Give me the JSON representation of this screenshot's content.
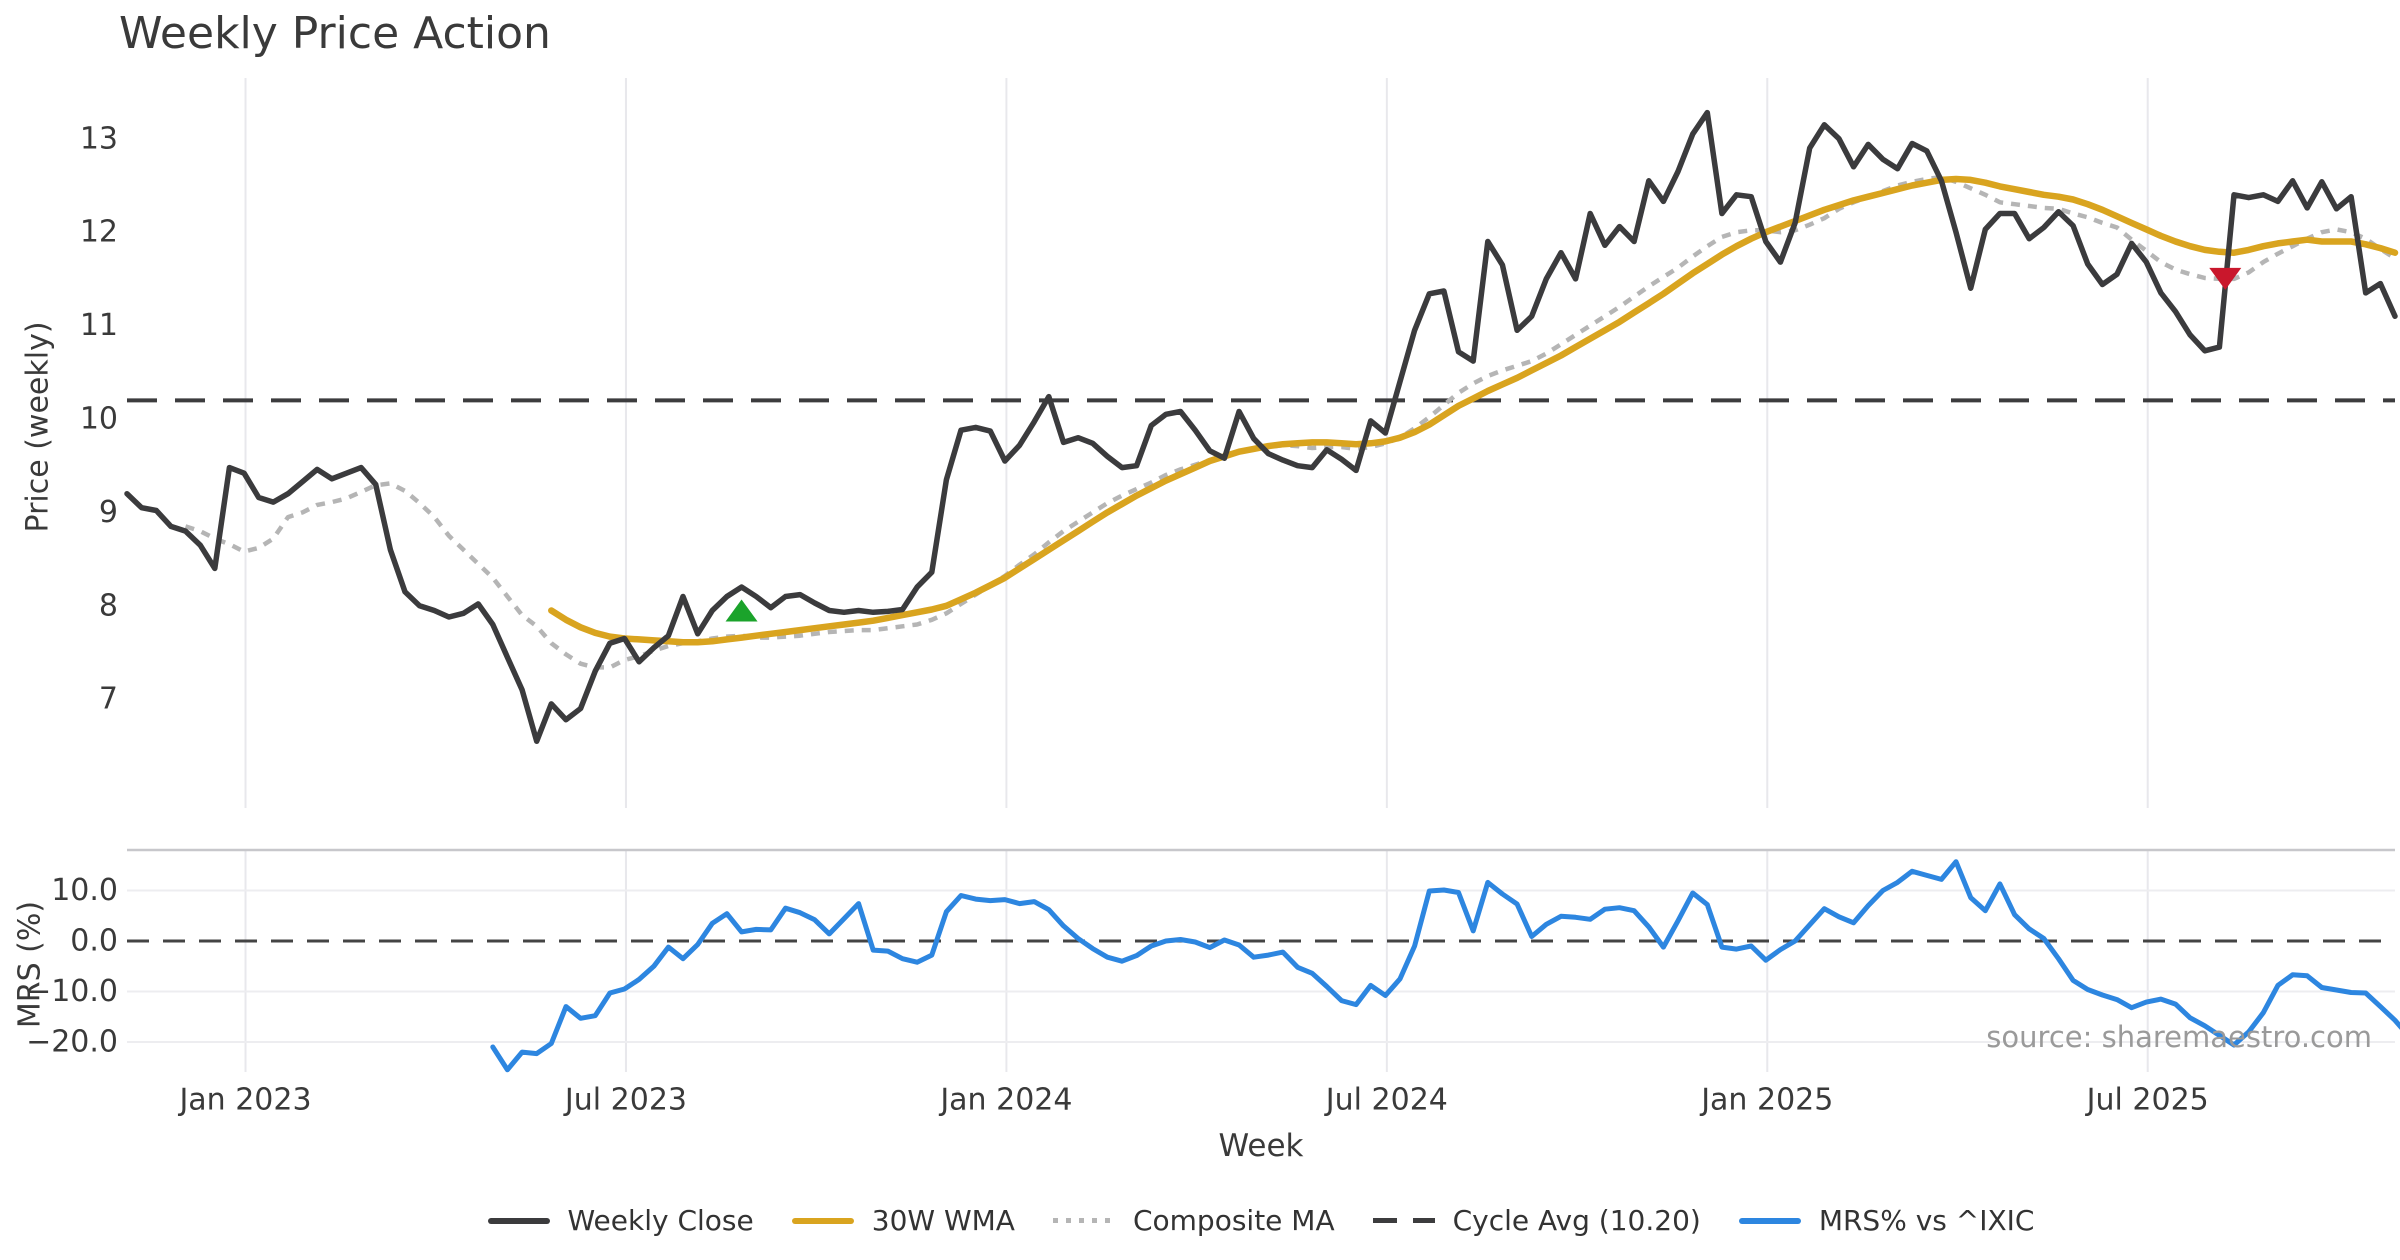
{
  "title": "Weekly Price Action",
  "watermark": "source: sharemaestro.com",
  "axes": {
    "price_label": "Price (weekly)",
    "mrs_label": "MRS (%)",
    "x_label": "Week"
  },
  "colors": {
    "close": "#3b3b3d",
    "wma": "#d9a41f",
    "composite": "#b5b5b5",
    "cycle_avg": "#3c3c3e",
    "mrs": "#2d86e0",
    "zero_line": "#444444",
    "grid": "#e8e8ec",
    "grid_h": "#ededf0",
    "spine": "#c7c7cb",
    "tick_text": "#3a3a3a",
    "buy_marker": "#1ba32b",
    "sell_marker": "#c9172c"
  },
  "legend": [
    {
      "label": "Weekly Close",
      "style": "solid",
      "color": "#3b3b3d"
    },
    {
      "label": "30W WMA",
      "style": "solid",
      "color": "#d9a41f"
    },
    {
      "label": "Composite MA",
      "style": "dotted",
      "color": "#b5b5b5"
    },
    {
      "label": "Cycle Avg (10.20)",
      "style": "dashed",
      "color": "#3c3c3e"
    },
    {
      "label": "MRS% vs ^IXIC",
      "style": "solid",
      "color": "#2d86e0"
    }
  ],
  "chart_data": {
    "type": "line",
    "title": "Weekly Price Action",
    "xlabel": "Week",
    "x_unit": "weeks (weekly data, ~Nov 2022 to ~Nov 2025)",
    "x_tick_labels": [
      "Jan 2023",
      "Jul 2023",
      "Jan 2024",
      "Jul 2024",
      "Jan 2025",
      "Jul 2025"
    ],
    "x_tick_weeks": [
      8.1,
      34.1,
      60.1,
      86.1,
      112.1,
      138.1
    ],
    "panels": [
      {
        "name": "price",
        "ylabel": "Price (weekly)",
        "ylim": [
          6.3,
          13.6
        ],
        "yticks": [
          {
            "v": 7,
            "label": "7"
          },
          {
            "v": 8,
            "label": "8"
          },
          {
            "v": 9,
            "label": "9"
          },
          {
            "v": 10,
            "label": "10"
          },
          {
            "v": 11,
            "label": "11"
          },
          {
            "v": 12,
            "label": "12"
          },
          {
            "v": 13,
            "label": "13"
          }
        ],
        "reference_line": {
          "name": "Cycle Avg",
          "value": 10.2,
          "style": "dashed"
        }
      },
      {
        "name": "mrs",
        "ylabel": "MRS (%)",
        "ylim": [
          -27,
          17
        ],
        "yticks": [
          {
            "v": 10,
            "label": "10.0"
          },
          {
            "v": 0,
            "label": "0.0"
          },
          {
            "v": -10,
            "label": "−10.0"
          },
          {
            "v": -20,
            "label": "−20.0"
          }
        ],
        "reference_line": {
          "name": "Zero",
          "value": 0,
          "style": "dashed"
        }
      }
    ],
    "series": [
      {
        "name": "Weekly Close",
        "panel": "price",
        "start_week": 0,
        "values": [
          9.2,
          9.05,
          9.02,
          8.85,
          8.8,
          8.65,
          8.4,
          9.48,
          9.42,
          9.16,
          9.11,
          9.2,
          9.33,
          9.46,
          9.36,
          9.42,
          9.48,
          9.3,
          8.6,
          8.15,
          8.0,
          7.95,
          7.88,
          7.92,
          8.02,
          7.8,
          7.45,
          7.1,
          6.55,
          6.95,
          6.78,
          6.9,
          7.3,
          7.6,
          7.65,
          7.4,
          7.55,
          7.68,
          8.1,
          7.7,
          7.95,
          8.1,
          8.2,
          8.1,
          7.98,
          8.1,
          8.12,
          8.03,
          7.95,
          7.93,
          7.95,
          7.93,
          7.94,
          7.96,
          8.2,
          8.36,
          9.35,
          9.88,
          9.91,
          9.87,
          9.55,
          9.72,
          9.97,
          10.24,
          9.75,
          9.8,
          9.74,
          9.6,
          9.48,
          9.5,
          9.93,
          10.05,
          10.08,
          9.88,
          9.66,
          9.58,
          10.08,
          9.79,
          9.63,
          9.56,
          9.5,
          9.48,
          9.67,
          9.57,
          9.45,
          9.98,
          9.85,
          10.4,
          10.95,
          11.34,
          11.37,
          10.72,
          10.62,
          11.9,
          11.65,
          10.95,
          11.1,
          11.5,
          11.78,
          11.5,
          12.2,
          11.86,
          12.06,
          11.9,
          12.55,
          12.33,
          12.65,
          13.05,
          13.28,
          12.2,
          12.4,
          12.38,
          11.9,
          11.68,
          12.1,
          12.9,
          13.15,
          13.0,
          12.7,
          12.94,
          12.78,
          12.68,
          12.95,
          12.87,
          12.55,
          12.0,
          11.4,
          12.03,
          12.2,
          12.2,
          11.93,
          12.05,
          12.22,
          12.07,
          11.66,
          11.44,
          11.55,
          11.88,
          11.68,
          11.35,
          11.15,
          10.9,
          10.73,
          10.77,
          12.4,
          12.37,
          12.4,
          12.33,
          12.55,
          12.26,
          12.54,
          12.25,
          12.38,
          11.35,
          11.45,
          11.1
        ]
      },
      {
        "name": "30W WMA",
        "panel": "price",
        "start_week": 29,
        "values": [
          7.95,
          7.85,
          7.77,
          7.71,
          7.67,
          7.65,
          7.64,
          7.63,
          7.62,
          7.61,
          7.61,
          7.62,
          7.64,
          7.66,
          7.68,
          7.7,
          7.72,
          7.74,
          7.76,
          7.78,
          7.8,
          7.82,
          7.84,
          7.87,
          7.9,
          7.93,
          7.96,
          8.0,
          8.07,
          8.14,
          8.22,
          8.3,
          8.4,
          8.5,
          8.6,
          8.7,
          8.8,
          8.9,
          9.0,
          9.09,
          9.18,
          9.26,
          9.34,
          9.41,
          9.48,
          9.55,
          9.6,
          9.65,
          9.68,
          9.71,
          9.73,
          9.74,
          9.75,
          9.75,
          9.74,
          9.73,
          9.74,
          9.76,
          9.8,
          9.86,
          9.94,
          10.04,
          10.14,
          10.22,
          10.3,
          10.37,
          10.44,
          10.52,
          10.6,
          10.68,
          10.77,
          10.86,
          10.95,
          11.04,
          11.14,
          11.24,
          11.34,
          11.45,
          11.56,
          11.66,
          11.76,
          11.85,
          11.93,
          12.0,
          12.06,
          12.12,
          12.18,
          12.24,
          12.29,
          12.34,
          12.38,
          12.42,
          12.46,
          12.5,
          12.53,
          12.56,
          12.57,
          12.56,
          12.53,
          12.49,
          12.46,
          12.43,
          12.4,
          12.38,
          12.35,
          12.3,
          12.24,
          12.17,
          12.1,
          12.03,
          11.96,
          11.9,
          11.85,
          11.81,
          11.79,
          11.78,
          11.81,
          11.85,
          11.88,
          11.9,
          11.92,
          11.9,
          11.9,
          11.9,
          11.87,
          11.83,
          11.78
        ]
      },
      {
        "name": "Composite MA",
        "panel": "price",
        "start_week": 4,
        "values": [
          8.85,
          8.8,
          8.72,
          8.66,
          8.58,
          8.62,
          8.72,
          8.95,
          9.0,
          9.08,
          9.11,
          9.15,
          9.22,
          9.29,
          9.31,
          9.23,
          9.1,
          8.95,
          8.75,
          8.6,
          8.45,
          8.3,
          8.1,
          7.9,
          7.78,
          7.6,
          7.48,
          7.38,
          7.34,
          7.34,
          7.42,
          7.46,
          7.52,
          7.57,
          7.6,
          7.62,
          7.65,
          7.67,
          7.68,
          7.66,
          7.66,
          7.67,
          7.68,
          7.7,
          7.72,
          7.73,
          7.74,
          7.74,
          7.76,
          7.78,
          7.8,
          7.85,
          7.92,
          8.02,
          8.12,
          8.22,
          8.32,
          8.44,
          8.55,
          8.68,
          8.8,
          8.9,
          9.0,
          9.1,
          9.18,
          9.25,
          9.32,
          9.4,
          9.46,
          9.51,
          9.56,
          9.6,
          9.64,
          9.68,
          9.7,
          9.72,
          9.71,
          9.69,
          9.7,
          9.7,
          9.68,
          9.7,
          9.74,
          9.8,
          9.9,
          10.02,
          10.15,
          10.28,
          10.38,
          10.46,
          10.52,
          10.57,
          10.62,
          10.7,
          10.8,
          10.9,
          11.0,
          11.1,
          11.2,
          11.31,
          11.42,
          11.52,
          11.62,
          11.74,
          11.85,
          11.95,
          12.0,
          12.02,
          12.02,
          12.0,
          12.02,
          12.08,
          12.15,
          12.25,
          12.32,
          12.38,
          12.44,
          12.5,
          12.54,
          12.57,
          12.59,
          12.54,
          12.47,
          12.4,
          12.32,
          12.3,
          12.28,
          12.26,
          12.25,
          12.2,
          12.16,
          12.1,
          12.05,
          11.92,
          11.8,
          11.68,
          11.6,
          11.55,
          11.51,
          11.5,
          11.5,
          11.57,
          11.68,
          11.77,
          11.85,
          11.93,
          12.0,
          12.03,
          12.0,
          11.93,
          11.82,
          11.72
        ]
      },
      {
        "name": "MRS% vs ^IXIC",
        "panel": "mrs",
        "start_week": 25,
        "values": [
          -21.0,
          -25.5,
          -22.0,
          -22.3,
          -20.3,
          -13.0,
          -15.3,
          -14.8,
          -10.3,
          -9.5,
          -7.6,
          -5.0,
          -1.2,
          -3.5,
          -0.7,
          3.5,
          5.4,
          1.8,
          2.3,
          2.2,
          6.5,
          5.6,
          4.2,
          1.4,
          4.4,
          7.4,
          -1.8,
          -2.0,
          -3.5,
          -4.2,
          -2.8,
          5.8,
          9.0,
          8.3,
          8.0,
          8.2,
          7.4,
          7.8,
          6.2,
          3.0,
          0.5,
          -1.5,
          -3.2,
          -4.0,
          -2.9,
          -1.0,
          0.0,
          0.3,
          -0.2,
          -1.3,
          0.2,
          -0.8,
          -3.2,
          -2.8,
          -2.2,
          -5.2,
          -6.4,
          -9.0,
          -11.8,
          -12.6,
          -8.8,
          -10.8,
          -7.5,
          -1.0,
          9.9,
          10.1,
          9.6,
          2.0,
          11.6,
          9.3,
          7.3,
          0.9,
          3.3,
          4.9,
          4.7,
          4.3,
          6.3,
          6.6,
          6.0,
          2.8,
          -1.2,
          4.0,
          9.5,
          7.2,
          -1.2,
          -1.6,
          -1.0,
          -3.8,
          -1.7,
          0.0,
          3.2,
          6.4,
          4.8,
          3.6,
          7.0,
          10.0,
          11.6,
          13.8,
          13.0,
          12.2,
          15.7,
          8.6,
          6.0,
          11.3,
          5.2,
          2.4,
          0.5,
          -3.5,
          -7.8,
          -9.6,
          -10.7,
          -11.6,
          -13.2,
          -12.1,
          -11.5,
          -12.5,
          -15.2,
          -16.8,
          -18.7,
          -20.6,
          -18.0,
          -14.2,
          -8.8,
          -6.7,
          -6.9,
          -9.2,
          -9.7,
          -10.2,
          -10.3,
          -13.0,
          -15.7,
          -19.0
        ]
      }
    ],
    "markers": [
      {
        "name": "buy-signal",
        "shape": "triangle-up",
        "week": 42,
        "price": 7.95,
        "color": "#1ba32b"
      },
      {
        "name": "sell-signal",
        "shape": "triangle-down",
        "week": 143.4,
        "price": 11.5,
        "color": "#c9172c"
      }
    ],
    "cycle_avg_value": 10.2,
    "legend_entries": [
      "Weekly Close",
      "30W WMA",
      "Composite MA",
      "Cycle Avg (10.20)",
      "MRS% vs ^IXIC"
    ],
    "legend_position": "bottom-center",
    "grid": "vertical light gridlines both panels; horizontal light gridlines in MRS panel"
  }
}
